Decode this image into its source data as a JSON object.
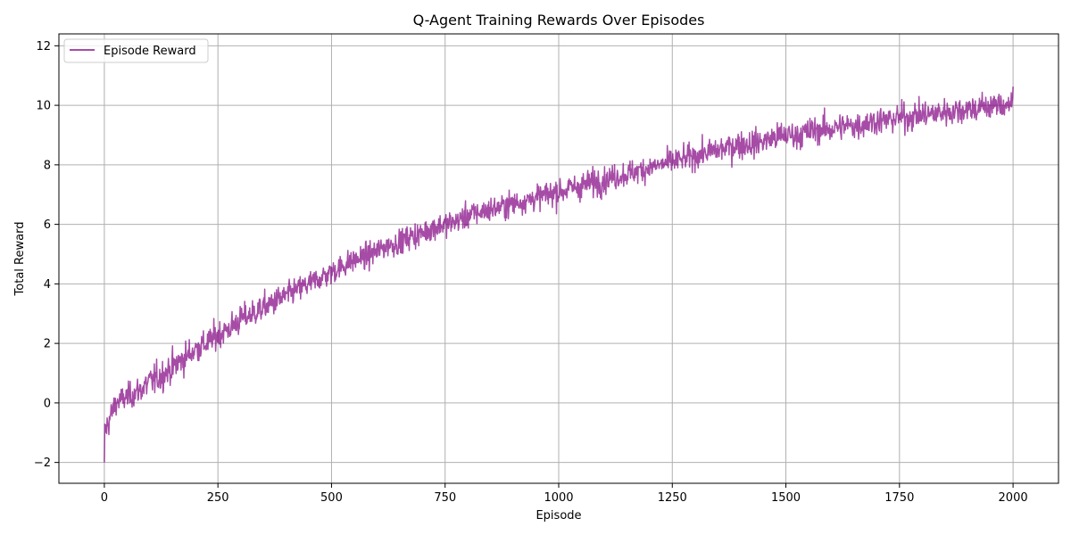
{
  "chart_data": {
    "type": "line",
    "title": "Q-Agent Training Rewards Over Episodes",
    "xlabel": "Episode",
    "ylabel": "Total Reward",
    "xlim": [
      -100,
      2100
    ],
    "ylim": [
      -2.7,
      12.4
    ],
    "xticks": [
      0,
      250,
      500,
      750,
      1000,
      1250,
      1500,
      1750,
      2000
    ],
    "xtick_labels": [
      "0",
      "250",
      "500",
      "750",
      "1000",
      "1250",
      "1500",
      "1750",
      "2000"
    ],
    "yticks": [
      -2,
      0,
      2,
      4,
      6,
      8,
      10,
      12
    ],
    "ytick_labels": [
      "−2",
      "0",
      "2",
      "4",
      "6",
      "8",
      "10",
      "12"
    ],
    "grid": true,
    "legend_position": "upper-left",
    "series": [
      {
        "name": "Episode Reward",
        "color": "#800080",
        "alpha": 0.7,
        "x": [
          0,
          25,
          50,
          75,
          100,
          125,
          150,
          175,
          200,
          225,
          250,
          275,
          300,
          325,
          350,
          375,
          400,
          425,
          450,
          475,
          500,
          525,
          550,
          575,
          600,
          625,
          650,
          675,
          700,
          725,
          750,
          775,
          800,
          825,
          850,
          875,
          900,
          925,
          950,
          975,
          1000,
          1025,
          1050,
          1075,
          1100,
          1125,
          1150,
          1175,
          1200,
          1225,
          1250,
          1275,
          1300,
          1325,
          1350,
          1375,
          1400,
          1425,
          1450,
          1475,
          1500,
          1525,
          1550,
          1575,
          1600,
          1625,
          1650,
          1675,
          1700,
          1725,
          1750,
          1775,
          1800,
          1825,
          1850,
          1875,
          1900,
          1925,
          1950,
          1975,
          2000
        ],
        "y": [
          -1.0,
          0.0,
          0.2,
          0.4,
          0.7,
          0.9,
          1.2,
          1.5,
          1.8,
          2.0,
          2.3,
          2.5,
          2.8,
          3.0,
          3.2,
          3.4,
          3.6,
          3.8,
          4.0,
          4.2,
          4.4,
          4.6,
          4.8,
          4.9,
          5.1,
          5.3,
          5.4,
          5.6,
          5.7,
          5.9,
          6.0,
          6.1,
          6.3,
          6.4,
          6.5,
          6.6,
          6.7,
          6.8,
          6.9,
          7.0,
          7.1,
          7.2,
          7.3,
          7.4,
          7.5,
          7.6,
          7.7,
          7.8,
          7.9,
          8.0,
          8.1,
          8.2,
          8.3,
          8.4,
          8.5,
          8.6,
          8.7,
          8.7,
          8.8,
          8.9,
          9.0,
          9.0,
          9.1,
          9.2,
          9.2,
          9.3,
          9.3,
          9.4,
          9.5,
          9.5,
          9.6,
          9.6,
          9.7,
          9.7,
          9.8,
          9.8,
          9.9,
          9.9,
          10.0,
          10.0,
          10.1
        ],
        "spread": [
          1.0,
          0.8,
          0.8,
          0.9,
          1.0,
          1.0,
          1.0,
          1.0,
          0.9,
          0.9,
          0.9,
          0.9,
          0.9,
          0.9,
          0.9,
          0.9,
          0.8,
          0.8,
          0.8,
          0.8,
          0.8,
          0.8,
          0.8,
          0.8,
          0.8,
          0.8,
          0.8,
          0.8,
          0.8,
          0.8,
          0.8,
          0.8,
          0.8,
          0.8,
          0.8,
          0.8,
          0.8,
          0.8,
          0.8,
          0.8,
          0.9,
          0.9,
          0.9,
          0.9,
          0.9,
          0.8,
          0.8,
          0.8,
          0.8,
          0.8,
          0.8,
          0.8,
          0.8,
          0.8,
          0.9,
          0.9,
          0.9,
          0.9,
          0.9,
          0.9,
          0.9,
          0.9,
          0.9,
          0.9,
          0.9,
          0.9,
          0.9,
          0.9,
          0.9,
          0.9,
          0.9,
          0.9,
          0.9,
          0.9,
          0.9,
          0.9,
          0.9,
          0.9,
          0.9,
          0.9,
          0.9
        ],
        "first_value": -2.0
      }
    ]
  }
}
